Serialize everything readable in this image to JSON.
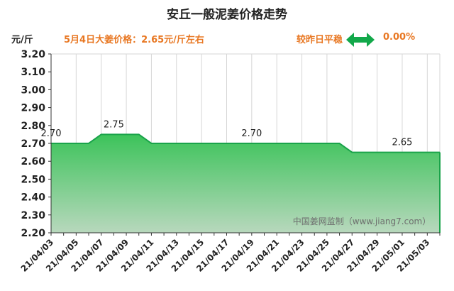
{
  "header": {
    "title": "安丘一般泥姜价格走势",
    "unit": "元/斤",
    "price_note": "5月4日大姜价格：2.65元/斤左右",
    "compare_label": "较昨日平稳",
    "change": "0.00%"
  },
  "colors": {
    "line": "#1aa34a",
    "fill_top": "#3cc35a",
    "fill_bottom": "#b8d8bd",
    "accent": "#e87722",
    "arrow": "#12a84a"
  },
  "icons": {
    "trend": "double-arrow-flat-icon"
  },
  "chart_data": {
    "type": "area",
    "title": "安丘一般泥姜价格走势",
    "ylabel": "元/斤",
    "xlabel": "",
    "ylim": [
      2.2,
      3.2
    ],
    "yticks": [
      "3.20",
      "3.10",
      "3.00",
      "2.90",
      "2.80",
      "2.70",
      "2.60",
      "2.50",
      "2.40",
      "2.30",
      "2.20"
    ],
    "x_ticks": [
      "21/04/03",
      "21/04/05",
      "21/04/07",
      "21/04/09",
      "21/04/11",
      "21/04/13",
      "21/04/15",
      "21/04/17",
      "21/04/19",
      "21/04/21",
      "21/04/23",
      "21/04/25",
      "21/04/27",
      "21/04/29",
      "21/05/01",
      "21/05/03"
    ],
    "x": [
      "21/04/03",
      "21/04/04",
      "21/04/05",
      "21/04/06",
      "21/04/07",
      "21/04/08",
      "21/04/09",
      "21/04/10",
      "21/04/11",
      "21/04/12",
      "21/04/13",
      "21/04/14",
      "21/04/15",
      "21/04/16",
      "21/04/17",
      "21/04/18",
      "21/04/19",
      "21/04/20",
      "21/04/21",
      "21/04/22",
      "21/04/23",
      "21/04/24",
      "21/04/25",
      "21/04/26",
      "21/04/27",
      "21/04/28",
      "21/04/29",
      "21/04/30",
      "21/05/01",
      "21/05/02",
      "21/05/03",
      "21/05/04"
    ],
    "series": [
      {
        "values": [
          2.7,
          2.7,
          2.7,
          2.7,
          2.75,
          2.75,
          2.75,
          2.75,
          2.7,
          2.7,
          2.7,
          2.7,
          2.7,
          2.7,
          2.7,
          2.7,
          2.7,
          2.7,
          2.7,
          2.7,
          2.7,
          2.7,
          2.7,
          2.7,
          2.65,
          2.65,
          2.65,
          2.65,
          2.65,
          2.65,
          2.65,
          2.65
        ]
      }
    ],
    "data_labels": [
      {
        "text": "2.70",
        "index": 0
      },
      {
        "text": "2.75",
        "index": 5
      },
      {
        "text": "2.70",
        "index": 16
      },
      {
        "text": "2.65",
        "index": 28
      }
    ],
    "watermark": "中国姜网监制（www.jiang7.com）",
    "grid": {
      "vertical": true,
      "horizontal": false
    }
  }
}
